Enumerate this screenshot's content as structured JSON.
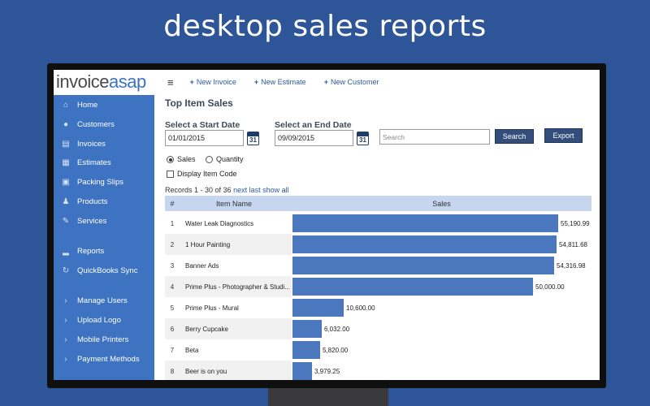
{
  "headline": "desktop sales reports",
  "logo": {
    "part1": "invoice",
    "part2": "asap"
  },
  "topbar": {
    "links": [
      "New Invoice",
      "New Estimate",
      "New Customer"
    ],
    "plus": "+"
  },
  "sidebar": {
    "items": [
      {
        "label": "Home",
        "icon": "home-icon"
      },
      {
        "label": "Customers",
        "icon": "user-icon"
      },
      {
        "label": "Invoices",
        "icon": "invoice-icon"
      },
      {
        "label": "Estimates",
        "icon": "calculator-icon"
      },
      {
        "label": "Packing Slips",
        "icon": "box-icon"
      },
      {
        "label": "Products",
        "icon": "pin-icon"
      },
      {
        "label": "Services",
        "icon": "wrench-icon"
      },
      {
        "label": "Reports",
        "icon": "bar-chart-icon"
      },
      {
        "label": "QuickBooks Sync",
        "icon": "sync-icon"
      },
      {
        "label": "Manage Users",
        "icon": "chevron-right-icon"
      },
      {
        "label": "Upload Logo",
        "icon": "chevron-right-icon"
      },
      {
        "label": "Mobile Printers",
        "icon": "chevron-right-icon"
      },
      {
        "label": "Payment Methods",
        "icon": "chevron-right-icon"
      }
    ]
  },
  "page": {
    "title": "Top Item Sales",
    "start_label": "Select a Start Date",
    "start_value": "01/01/2015",
    "end_label": "Select an End Date",
    "end_value": "09/09/2015",
    "calendar_day": "31",
    "search_placeholder": "Search",
    "search_button": "Search",
    "export_button": "Export",
    "radio_sales": "Sales",
    "radio_quantity": "Quantity",
    "display_code": "Display Item Code",
    "records_text": "Records 1 - 30 of 36",
    "next": "next",
    "last": "last",
    "show_all": "show all"
  },
  "table": {
    "headers": [
      "#",
      "Item Name",
      "Sales"
    ],
    "rows": [
      {
        "n": "1",
        "name": "Water Leak Diagnostics",
        "sales": 55190.99,
        "label": "55,190.99"
      },
      {
        "n": "2",
        "name": "1 Hour Painting",
        "sales": 54811.68,
        "label": "54,811.68"
      },
      {
        "n": "3",
        "name": "Banner Ads",
        "sales": 54316.98,
        "label": "54,316.98"
      },
      {
        "n": "4",
        "name": "Prime Plus - Photographer & Studi...",
        "sales": 50000.0,
        "label": "50,000.00"
      },
      {
        "n": "5",
        "name": "Prime Plus - Mural",
        "sales": 10600.0,
        "label": "10,600.00"
      },
      {
        "n": "6",
        "name": "Berry Cupcake",
        "sales": 6032.0,
        "label": "6,032.00"
      },
      {
        "n": "7",
        "name": "Beta",
        "sales": 5820.0,
        "label": "5,820.00"
      },
      {
        "n": "8",
        "name": "Beer is on you",
        "sales": 3979.25,
        "label": "3,979.25"
      }
    ]
  },
  "colors": {
    "accent": "#3d73c1",
    "bar": "#4a77be",
    "background": "#2d5597",
    "button": "#334e7a"
  }
}
